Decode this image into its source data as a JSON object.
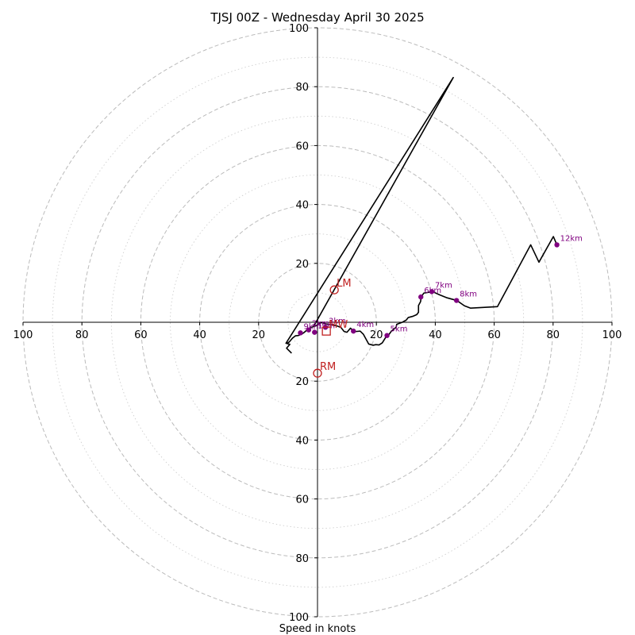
{
  "chart_data": {
    "type": "hodograph",
    "title": "TJSJ 00Z - Wednesday April 30 2025",
    "xlabel": "Speed in knots",
    "range": [
      -100,
      100
    ],
    "rings_major": [
      20,
      40,
      60,
      80,
      100
    ],
    "rings_minor": [
      10,
      30,
      50,
      70,
      90
    ],
    "ticks_x": [
      {
        "v": -100,
        "label": "100"
      },
      {
        "v": -80,
        "label": "80"
      },
      {
        "v": -60,
        "label": "60"
      },
      {
        "v": -40,
        "label": "40"
      },
      {
        "v": -20,
        "label": "20"
      },
      {
        "v": 20,
        "label": "20"
      },
      {
        "v": 40,
        "label": "40"
      },
      {
        "v": 60,
        "label": "60"
      },
      {
        "v": 80,
        "label": "80"
      },
      {
        "v": 100,
        "label": "100"
      }
    ],
    "ticks_y": [
      {
        "v": 100,
        "label": "100"
      },
      {
        "v": 80,
        "label": "80"
      },
      {
        "v": 60,
        "label": "60"
      },
      {
        "v": 40,
        "label": "40"
      },
      {
        "v": 20,
        "label": "20"
      },
      {
        "v": -20,
        "label": "20"
      },
      {
        "v": -40,
        "label": "40"
      },
      {
        "v": -60,
        "label": "60"
      },
      {
        "v": -80,
        "label": "80"
      },
      {
        "v": -100,
        "label": "100"
      }
    ],
    "trace": [
      [
        -8.8,
        -10.5
      ],
      [
        -10.5,
        -8.8
      ],
      [
        -9.4,
        -7.5
      ],
      [
        -10.4,
        -7.2
      ],
      [
        -9.6,
        -6.7
      ],
      [
        -8.5,
        -5.4
      ],
      [
        -7.5,
        -4.6
      ],
      [
        -6.5,
        -4.5
      ],
      [
        -5.3,
        -4.0
      ],
      [
        -4.6,
        -3.5
      ],
      [
        -3.3,
        -2.4
      ],
      [
        -2.2,
        -1.8
      ],
      [
        -1.2,
        -1.4
      ],
      [
        -0.5,
        -1.2
      ],
      [
        0.5,
        -0.4
      ],
      [
        1.5,
        -0.1
      ],
      [
        3.0,
        -0.6
      ],
      [
        4.4,
        -0.8
      ],
      [
        6.3,
        -1.1
      ],
      [
        8.0,
        -1.8
      ],
      [
        9.0,
        -3.1
      ],
      [
        10.0,
        -3.4
      ],
      [
        11.2,
        -2.0
      ],
      [
        12.4,
        -3.2
      ],
      [
        14.5,
        -3.0
      ],
      [
        15.6,
        -4.1
      ],
      [
        17.4,
        -7.4
      ],
      [
        18.9,
        -7.8
      ],
      [
        19.8,
        -7.6
      ],
      [
        20.9,
        -7.7
      ],
      [
        22.0,
        -7.0
      ],
      [
        23.3,
        -4.9
      ],
      [
        24.1,
        -4.4
      ],
      [
        25.1,
        -3.0
      ],
      [
        26.7,
        -1.7
      ],
      [
        26.9,
        -0.7
      ],
      [
        27.7,
        -0.4
      ],
      [
        28.8,
        0.0
      ],
      [
        30.2,
        0.8
      ],
      [
        30.8,
        1.6
      ],
      [
        32.3,
        2.0
      ],
      [
        33.7,
        2.6
      ],
      [
        34.3,
        3.4
      ],
      [
        34.3,
        5.7
      ],
      [
        35.0,
        7.0
      ],
      [
        35.2,
        8.6
      ],
      [
        36.1,
        9.9
      ],
      [
        39.1,
        10.4
      ],
      [
        41.5,
        9.3
      ],
      [
        44.0,
        8.3
      ],
      [
        47.3,
        7.4
      ],
      [
        49.9,
        5.6
      ],
      [
        52.0,
        4.8
      ],
      [
        61.1,
        5.3
      ],
      [
        72.4,
        26.3
      ],
      [
        75.2,
        20.4
      ],
      [
        80.1,
        29.1
      ],
      [
        81.3,
        26.3
      ]
    ],
    "storm_motion_line": [
      [
        -10.8,
        -7.3
      ],
      [
        46.1,
        83.1
      ],
      [
        -1.2,
        -1.2
      ]
    ],
    "height_markers": [
      {
        "label": "1km",
        "u": -1.0,
        "v": -3.4
      },
      {
        "label": "2km",
        "u": -3.0,
        "v": -2.6
      },
      {
        "label": "3km",
        "u": 2.7,
        "v": -1.7
      },
      {
        "label": "4km",
        "u": 12.2,
        "v": -3.0
      },
      {
        "label": "5km",
        "u": 23.6,
        "v": -4.5
      },
      {
        "label": "6km",
        "u": 35.1,
        "v": 8.6
      },
      {
        "label": "7km",
        "u": 38.8,
        "v": 10.4
      },
      {
        "label": "8km",
        "u": 47.2,
        "v": 7.4
      },
      {
        "label": "9km",
        "u": -5.8,
        "v": -3.6
      },
      {
        "label": "12km",
        "u": 81.3,
        "v": 26.3
      }
    ],
    "storm_motions": [
      {
        "label": "LM",
        "u": 5.7,
        "v": 11.0,
        "shape": "circle"
      },
      {
        "label": "RM",
        "u": 0.0,
        "v": -17.3,
        "shape": "circle"
      },
      {
        "label": "MW",
        "u": 3.0,
        "v": -3.0,
        "shape": "square"
      }
    ],
    "colors": {
      "trace": "#000000",
      "markers": "#800080",
      "storm_motion": "#c02020",
      "grid": "#bbbbbb",
      "axes": "#000000"
    }
  }
}
